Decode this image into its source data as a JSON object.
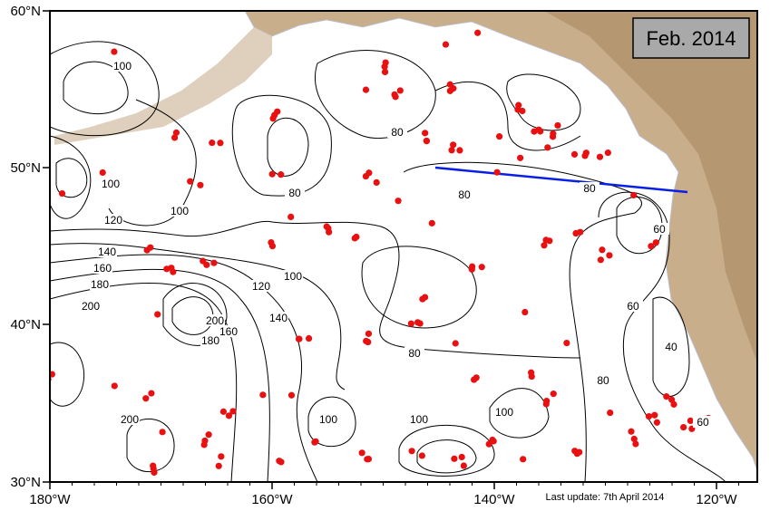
{
  "map": {
    "title": "Feb. 2014",
    "footer": "Last update: 7th April 2014",
    "x_labels": [
      "180°W",
      "160°W",
      "140°W",
      "120°W"
    ],
    "y_labels": [
      "60°N",
      "50°N",
      "40°N",
      "30°N"
    ],
    "contour_labels": [
      "100",
      "100",
      "80",
      "80",
      "100",
      "120",
      "140",
      "160",
      "180",
      "200",
      "100",
      "120",
      "140",
      "160",
      "180",
      "200",
      "80",
      "100",
      "100",
      "100",
      "80",
      "60",
      "40",
      "60",
      "60",
      "80",
      "80",
      "200"
    ]
  }
}
